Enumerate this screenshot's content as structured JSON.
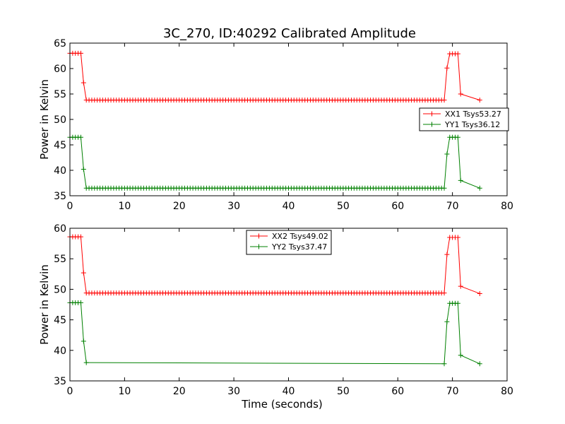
{
  "figure_title": "3C_270, ID:40292 Calibrated Amplitude",
  "chart_data": [
    {
      "type": "line",
      "title": "3C_270, ID:40292 Calibrated Amplitude",
      "xlabel": "",
      "ylabel": "Power in Kelvin",
      "xlim": [
        0,
        80
      ],
      "ylim": [
        35,
        65
      ],
      "xticks": [
        0,
        10,
        20,
        30,
        40,
        50,
        60,
        70,
        80
      ],
      "yticks": [
        35,
        40,
        45,
        50,
        55,
        60,
        65
      ],
      "grid": false,
      "legend_position": "center-right",
      "marker": "+",
      "series": [
        {
          "name": "XX1 Tsys53.27",
          "color": "#ff0000",
          "x": [
            0,
            0.5,
            1,
            1.5,
            2,
            2.5,
            3,
            68.5,
            69,
            69.5,
            70,
            70.5,
            71,
            71.5,
            75
          ],
          "y": [
            63,
            63,
            63,
            63,
            63,
            57.2,
            53.8,
            53.8,
            60.1,
            62.9,
            62.9,
            62.9,
            62.9,
            55,
            53.8
          ]
        },
        {
          "name": "YY1 Tsys36.12",
          "color": "#008000",
          "x": [
            0,
            0.5,
            1,
            1.5,
            2,
            2.5,
            3,
            68.5,
            69,
            69.5,
            70,
            70.5,
            71,
            71.5,
            75
          ],
          "y": [
            46.5,
            46.5,
            46.5,
            46.5,
            46.5,
            40.2,
            36.5,
            36.5,
            43.2,
            46.5,
            46.5,
            46.5,
            46.5,
            38,
            36.5
          ]
        }
      ]
    },
    {
      "type": "line",
      "title": "",
      "xlabel": "Time (seconds)",
      "ylabel": "Power in Kelvin",
      "xlim": [
        0,
        80
      ],
      "ylim": [
        35,
        60
      ],
      "xticks": [
        0,
        10,
        20,
        30,
        40,
        50,
        60,
        70,
        80
      ],
      "yticks": [
        35,
        40,
        45,
        50,
        55,
        60
      ],
      "grid": false,
      "legend_position": "upper-center",
      "marker": "+",
      "series": [
        {
          "name": "XX2 Tsys49.02",
          "color": "#ff0000",
          "x": [
            0,
            0.5,
            1,
            1.5,
            2,
            2.5,
            3,
            68.5,
            69,
            69.5,
            70,
            70.5,
            71,
            71.5,
            75
          ],
          "y": [
            58.6,
            58.6,
            58.6,
            58.6,
            58.6,
            52.7,
            49.4,
            49.4,
            55.7,
            58.5,
            58.5,
            58.5,
            58.5,
            50.5,
            49.3
          ]
        },
        {
          "name": "YY2 Tsys37.47",
          "color": "#008000",
          "x": [
            0,
            0.5,
            1,
            1.5,
            2,
            2.5,
            3,
            68.5,
            69,
            69.5,
            70,
            70.5,
            71,
            71.5,
            75
          ],
          "y": [
            47.8,
            47.8,
            47.8,
            47.8,
            47.8,
            41.5,
            38,
            37.8,
            44.7,
            47.7,
            47.7,
            47.7,
            47.7,
            39.2,
            37.8
          ]
        }
      ]
    }
  ]
}
